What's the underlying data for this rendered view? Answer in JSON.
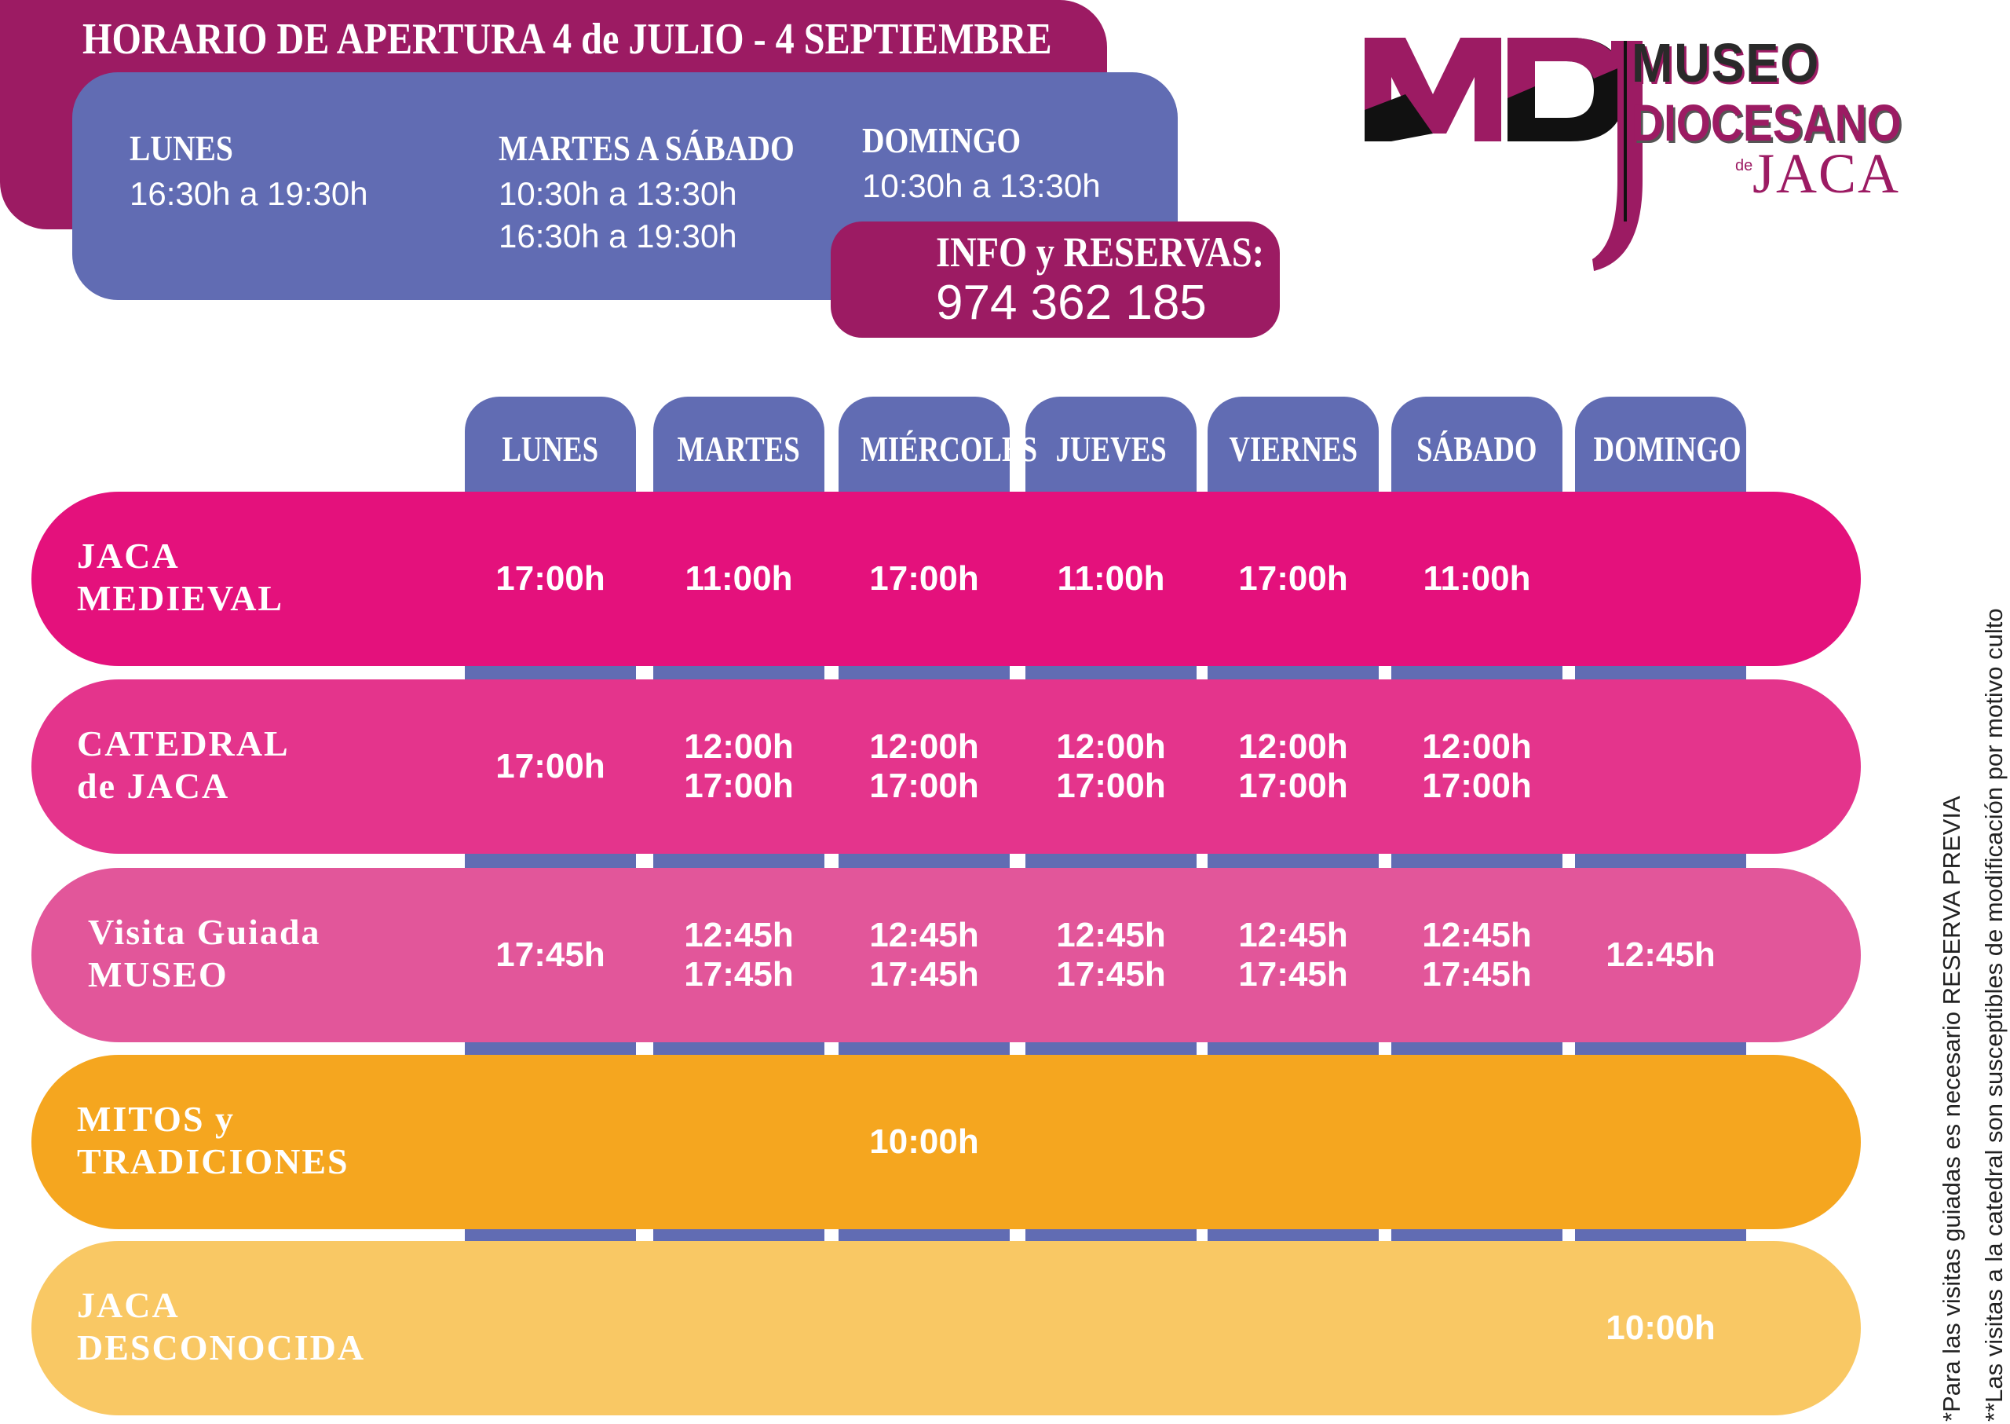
{
  "header": {
    "title": "HORARIO DE APERTURA 4 de JULIO - 4 SEPTIEMBRE",
    "schedule": [
      {
        "day": "LUNES",
        "times": [
          "16:30h a 19:30h"
        ]
      },
      {
        "day": "MARTES A SÁBADO",
        "times": [
          "10:30h a 13:30h",
          "16:30h a 19:30h"
        ]
      },
      {
        "day": "DOMINGO",
        "times": [
          "10:30h a 13:30h"
        ]
      }
    ],
    "info_label": "INFO y RESERVAS:",
    "info_phone": "974 362 185"
  },
  "logo": {
    "letters": "MDJ",
    "line1": "MUSEO",
    "line2": "DIOCESANO",
    "line3_small": "de",
    "line3": "JACA"
  },
  "days": [
    "LUNES",
    "MARTES",
    "MIÉRCOLES",
    "JUEVES",
    "VIERNES",
    "SÁBADO",
    "DOMINGO"
  ],
  "activities": [
    {
      "title_lines": [
        "JACA",
        "MEDIEVAL"
      ],
      "color": "#e4117c",
      "times": [
        "17:00h",
        "11:00h",
        "17:00h",
        "11:00h",
        "17:00h",
        "11:00h",
        ""
      ]
    },
    {
      "title_lines": [
        "CATEDRAL",
        "de JACA"
      ],
      "color": "#e4348c",
      "times": [
        "17:00h",
        "12:00h\n17:00h",
        "12:00h\n17:00h",
        "12:00h\n17:00h",
        "12:00h\n17:00h",
        "12:00h\n17:00h",
        ""
      ]
    },
    {
      "title_lines": [
        "Visita Guiada",
        "MUSEO"
      ],
      "color": "#e2569a",
      "times": [
        "17:45h",
        "12:45h\n17:45h",
        "12:45h\n17:45h",
        "12:45h\n17:45h",
        "12:45h\n17:45h",
        "12:45h\n17:45h",
        "12:45h"
      ]
    },
    {
      "title_lines": [
        "MITOS y",
        "TRADICIONES"
      ],
      "color": "#f5a61f",
      "times": [
        "",
        "",
        "10:00h",
        "",
        "",
        "",
        ""
      ]
    },
    {
      "title_lines": [
        "JACA",
        "DESCONOCIDA"
      ],
      "color": "#f9c864",
      "times": [
        "",
        "",
        "",
        "",
        "",
        "",
        "10:00h"
      ]
    }
  ],
  "notes": [
    "*Para las visitas guiadas es necesario RESERVA PREVIA",
    "**Las visitas a la catedral son susceptibles de modificación por  motivo culto"
  ],
  "colors": {
    "purple": "#9c1b63",
    "blue": "#616cb3"
  }
}
